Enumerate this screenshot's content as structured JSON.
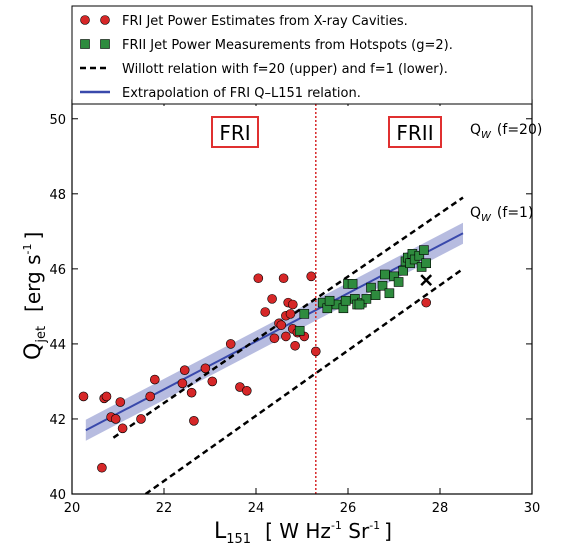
{
  "chart_data": {
    "type": "scatter",
    "xlabel": {
      "main": "L",
      "sub": "151",
      "units": "[ W Hz",
      "exp1": "-1",
      "mid": " Sr",
      "exp2": "-1",
      "close": "]"
    },
    "ylabel": {
      "main": "Q",
      "sub": "jet",
      "units": "[erg s",
      "exp": "-1",
      "close": "]"
    },
    "xlim": [
      20,
      30
    ],
    "ylim": [
      40,
      50.5
    ],
    "xticks": [
      20,
      22,
      24,
      26,
      28,
      30
    ],
    "yticks": [
      40,
      42,
      44,
      46,
      48,
      50
    ],
    "grid": false,
    "legend_position": "top",
    "legend": [
      {
        "label": "FRI Jet Power Estimates from X-ray Cavities.",
        "marker": "circle",
        "color": "#d62728"
      },
      {
        "label": "FRII Jet Power Measurements from Hotspots (g=2).",
        "marker": "square",
        "color": "#2ca02c"
      },
      {
        "label": "Willott relation with f=20 (upper) and f=1 (lower).",
        "marker": "dashed-line",
        "color": "#000000"
      },
      {
        "label": "Extrapolation of FRI Q–L151 relation.",
        "marker": "line",
        "color": "#3949ab"
      }
    ],
    "region_labels": {
      "left": "FRI",
      "right": "FRII"
    },
    "divider_x": 25.3,
    "line_labels": {
      "upper": "Q",
      "upper_sub": "W",
      "upper_f": "(f=20)",
      "lower": "Q",
      "lower_sub": "W",
      "lower_f": "(f=1)"
    },
    "fr1_points": [
      [
        20.25,
        42.6
      ],
      [
        20.65,
        40.7
      ],
      [
        20.7,
        42.55
      ],
      [
        20.75,
        42.6
      ],
      [
        20.85,
        42.05
      ],
      [
        20.95,
        42.0
      ],
      [
        21.05,
        42.45
      ],
      [
        21.1,
        41.75
      ],
      [
        21.5,
        42.0
      ],
      [
        21.7,
        42.6
      ],
      [
        21.8,
        43.05
      ],
      [
        22.4,
        42.95
      ],
      [
        22.45,
        43.3
      ],
      [
        22.6,
        42.7
      ],
      [
        22.65,
        41.95
      ],
      [
        22.9,
        43.35
      ],
      [
        23.05,
        43.0
      ],
      [
        23.45,
        44.0
      ],
      [
        23.65,
        42.85
      ],
      [
        23.8,
        42.75
      ],
      [
        24.05,
        45.75
      ],
      [
        24.2,
        44.85
      ],
      [
        24.35,
        45.2
      ],
      [
        24.4,
        44.15
      ],
      [
        24.5,
        44.55
      ],
      [
        24.55,
        44.5
      ],
      [
        24.6,
        45.75
      ],
      [
        24.65,
        44.2
      ],
      [
        24.65,
        44.75
      ],
      [
        24.7,
        45.1
      ],
      [
        24.75,
        44.8
      ],
      [
        24.8,
        45.05
      ],
      [
        24.8,
        44.4
      ],
      [
        24.85,
        43.95
      ],
      [
        24.9,
        44.3
      ],
      [
        25.05,
        44.2
      ],
      [
        25.2,
        45.8
      ],
      [
        25.3,
        43.8
      ],
      [
        27.7,
        45.1
      ]
    ],
    "fr2_points": [
      [
        25.45,
        45.1
      ],
      [
        25.55,
        44.95
      ],
      [
        25.75,
        45.05
      ],
      [
        25.9,
        44.95
      ],
      [
        25.95,
        45.15
      ],
      [
        26.0,
        45.6
      ],
      [
        26.1,
        45.6
      ],
      [
        26.15,
        45.2
      ],
      [
        26.2,
        45.05
      ],
      [
        26.3,
        45.1
      ],
      [
        26.4,
        45.2
      ],
      [
        26.5,
        45.5
      ],
      [
        26.6,
        45.3
      ],
      [
        26.75,
        45.55
      ],
      [
        26.8,
        45.85
      ],
      [
        26.9,
        45.35
      ],
      [
        27.0,
        45.8
      ],
      [
        27.1,
        45.65
      ],
      [
        27.2,
        45.95
      ],
      [
        27.25,
        46.2
      ],
      [
        27.3,
        46.3
      ],
      [
        27.35,
        46.15
      ],
      [
        27.4,
        46.4
      ],
      [
        27.45,
        46.25
      ],
      [
        27.55,
        46.35
      ],
      [
        27.6,
        46.05
      ],
      [
        27.65,
        46.5
      ],
      [
        27.7,
        46.15
      ],
      [
        25.05,
        44.8
      ],
      [
        24.95,
        44.35
      ],
      [
        25.6,
        45.15
      ],
      [
        26.25,
        45.05
      ]
    ],
    "outlier_x": [
      27.7,
      45.7
    ],
    "fit_line": [
      [
        20.3,
        41.7
      ],
      [
        28.5,
        46.95
      ]
    ],
    "fit_band_halfwidth": 0.28,
    "willott_upper": [
      [
        20.9,
        41.5
      ],
      [
        28.5,
        47.9
      ]
    ],
    "willott_lower": [
      [
        21.6,
        40.0
      ],
      [
        28.5,
        46.0
      ]
    ]
  }
}
